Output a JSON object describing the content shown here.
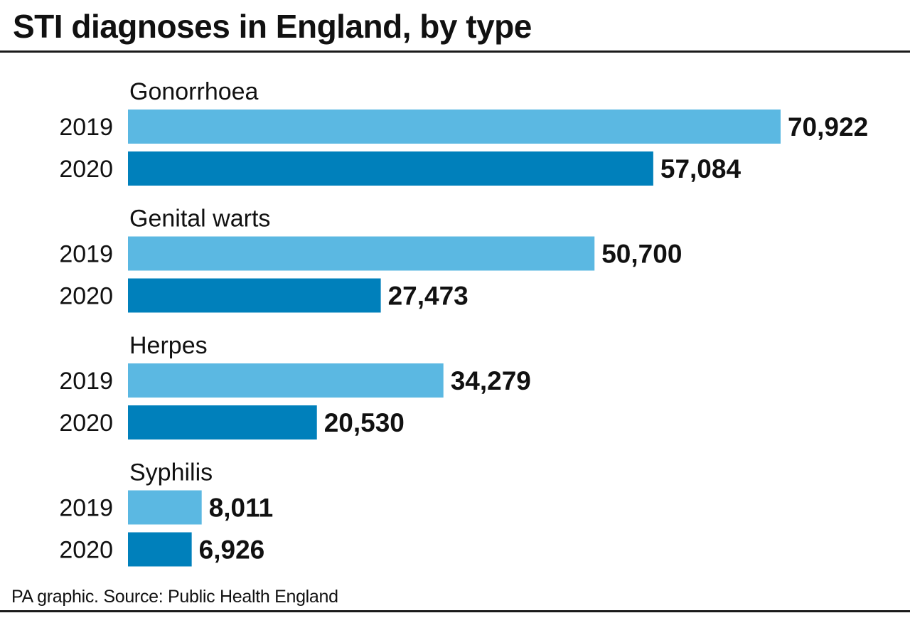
{
  "title": "STI diagnoses in England, by type",
  "source": "PA graphic. Source: Public Health England",
  "colors": {
    "series_2019": "#5bb8e2",
    "series_2020": "#0080bb",
    "text": "#111111",
    "rule": "#1a1a1a"
  },
  "chart_data": {
    "type": "bar",
    "orientation": "horizontal",
    "title": "STI diagnoses in England, by type",
    "grid": false,
    "legend": "none",
    "groups": [
      "Gonorrhoea",
      "Genital warts",
      "Herpes",
      "Syphilis"
    ],
    "series": [
      {
        "name": "2019",
        "color": "#5bb8e2",
        "values": [
          70922,
          50700,
          34279,
          8011
        ],
        "labels": [
          "70,922",
          "50,700",
          "34,279",
          "8,011"
        ]
      },
      {
        "name": "2020",
        "color": "#0080bb",
        "values": [
          57084,
          27473,
          20530,
          6926
        ],
        "labels": [
          "57,084",
          "27,473",
          "20,530",
          "6,926"
        ]
      }
    ],
    "xlim": [
      0,
      71000
    ]
  }
}
